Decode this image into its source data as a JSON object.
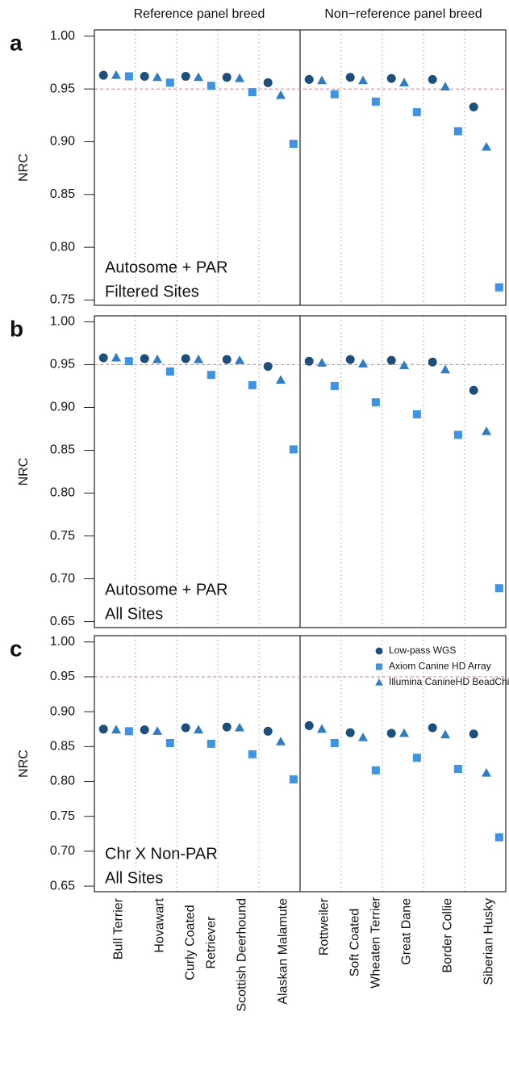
{
  "column_headers": [
    "Reference panel breed",
    "Non−reference panel breed"
  ],
  "chart_data": [
    {
      "type": "scatter",
      "panel_label": "a",
      "ylabel": "NRC",
      "annotation": [
        "Autosome + PAR",
        "Filtered Sites"
      ],
      "ylim": [
        0.745,
        1.006
      ],
      "yticks": [
        {
          "value": 0.75,
          "label": "0.75"
        },
        {
          "value": 0.8,
          "label": "0.80"
        },
        {
          "value": 0.85,
          "label": "0.85"
        },
        {
          "value": 0.9,
          "label": "0.90"
        },
        {
          "value": 0.95,
          "label": "0.95"
        },
        {
          "value": 1,
          "label": "1.00"
        }
      ],
      "reference_line": 0.95,
      "reference_color": "#e08a96",
      "legend": false,
      "series": [
        {
          "name": "Low-pass WGS",
          "marker": "circle",
          "color": "#1d4f7c",
          "values": [
            0.963,
            0.962,
            0.962,
            0.961,
            0.956,
            0.959,
            0.961,
            0.96,
            0.959,
            0.933
          ]
        },
        {
          "name": "Axiom Canine HD Array",
          "marker": "square",
          "color": "#3d93e6",
          "values": [
            0.962,
            0.956,
            0.953,
            0.947,
            0.898,
            0.945,
            0.938,
            0.928,
            0.91,
            0.762
          ]
        },
        {
          "name": "Illumina CanineHD BeadChip",
          "marker": "triangle",
          "color": "#2d7cc6",
          "values": [
            0.963,
            0.961,
            0.961,
            0.96,
            0.944,
            0.958,
            0.958,
            0.956,
            0.952,
            0.895
          ]
        }
      ]
    },
    {
      "type": "scatter",
      "panel_label": "b",
      "ylabel": "NRC",
      "annotation": [
        "Autosome + PAR",
        "All Sites"
      ],
      "ylim": [
        0.643,
        1.007
      ],
      "yticks": [
        {
          "value": 0.65,
          "label": "0.65"
        },
        {
          "value": 0.7,
          "label": "0.70"
        },
        {
          "value": 0.75,
          "label": "0.75"
        },
        {
          "value": 0.8,
          "label": "0.80"
        },
        {
          "value": 0.85,
          "label": "0.85"
        },
        {
          "value": 0.9,
          "label": "0.90"
        },
        {
          "value": 0.95,
          "label": "0.95"
        },
        {
          "value": 1,
          "label": "1.00"
        }
      ],
      "reference_line": 0.95,
      "reference_color": "#e08a96",
      "legend": false,
      "series": [
        {
          "name": "Low-pass WGS",
          "marker": "circle",
          "color": "#1d4f7c",
          "values": [
            0.958,
            0.957,
            0.957,
            0.956,
            0.948,
            0.954,
            0.956,
            0.955,
            0.953,
            0.92
          ]
        },
        {
          "name": "Axiom Canine HD Array",
          "marker": "square",
          "color": "#3d93e6",
          "values": [
            0.954,
            0.942,
            0.938,
            0.926,
            0.851,
            0.925,
            0.906,
            0.892,
            0.868,
            0.689
          ]
        },
        {
          "name": "Illumina CanineHD BeadChip",
          "marker": "triangle",
          "color": "#2d7cc6",
          "values": [
            0.958,
            0.956,
            0.956,
            0.955,
            0.932,
            0.952,
            0.951,
            0.949,
            0.944,
            0.872
          ]
        }
      ]
    },
    {
      "type": "scatter",
      "panel_label": "c",
      "ylabel": "NRC",
      "annotation": [
        "Chr X Non-PAR",
        "All Sites"
      ],
      "ylim": [
        0.642,
        1.009
      ],
      "yticks": [
        {
          "value": 0.65,
          "label": "0.65"
        },
        {
          "value": 0.7,
          "label": "0.70"
        },
        {
          "value": 0.75,
          "label": "0.75"
        },
        {
          "value": 0.8,
          "label": "0.80"
        },
        {
          "value": 0.85,
          "label": "0.85"
        },
        {
          "value": 0.9,
          "label": "0.90"
        },
        {
          "value": 0.95,
          "label": "0.95"
        },
        {
          "value": 1,
          "label": "1.00"
        }
      ],
      "reference_line": 0.95,
      "reference_color": "#e08a96",
      "legend": true,
      "categories": [
        [
          "Bull Terrier"
        ],
        [
          "Hovawart"
        ],
        [
          "Curly Coated",
          "Retriever"
        ],
        [
          "Scottish Deerhound"
        ],
        [
          "Alaskan Malamute"
        ],
        [
          "Rottweiler"
        ],
        [
          "Soft Coated",
          "Wheaten Terrier"
        ],
        [
          "Great Dane"
        ],
        [
          "Border Collie"
        ],
        [
          "Siberian Husky"
        ]
      ],
      "category_colors": [
        "#000000",
        "#000000",
        "#000000",
        "#000000",
        "#000000",
        "#000000",
        "#000000",
        "#000000",
        "#c4506a",
        "#c4506a"
      ],
      "series": [
        {
          "name": "Low-pass WGS",
          "marker": "circle",
          "color": "#1d4f7c",
          "values": [
            0.875,
            0.874,
            0.877,
            0.878,
            0.872,
            0.88,
            0.87,
            0.869,
            0.877,
            0.868
          ]
        },
        {
          "name": "Axiom Canine HD Array",
          "marker": "square",
          "color": "#3d93e6",
          "values": [
            0.872,
            0.855,
            0.854,
            0.839,
            0.803,
            0.855,
            0.816,
            0.834,
            0.818,
            0.72
          ]
        },
        {
          "name": "Illumina CanineHD BeadChip",
          "marker": "triangle",
          "color": "#2d7cc6",
          "values": [
            0.874,
            0.872,
            0.874,
            0.877,
            0.857,
            0.875,
            0.863,
            0.869,
            0.867,
            0.812
          ]
        }
      ]
    }
  ]
}
